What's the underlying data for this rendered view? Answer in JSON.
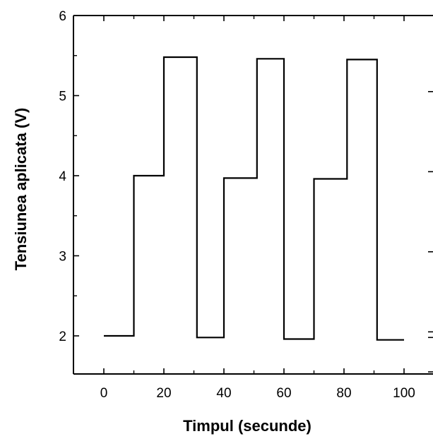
{
  "chart_data": {
    "type": "line",
    "title": "",
    "xlabel": "Timpul (secunde)",
    "ylabel": "Tensiunea aplicata (V)",
    "xlim": [
      -10,
      110
    ],
    "ylim": [
      1.5,
      6
    ],
    "x_ticks": [
      0,
      20,
      40,
      60,
      80,
      100
    ],
    "x_tick_labels": [
      "0",
      "20",
      "40",
      "60",
      "80",
      "100"
    ],
    "y_ticks": [
      2,
      3,
      4,
      5,
      6
    ],
    "y_tick_labels": [
      "2",
      "3",
      "4",
      "5",
      "6"
    ],
    "grid": false,
    "legend": "none",
    "line_color": "#000000",
    "series": [
      {
        "x": [
          0,
          10,
          10,
          20,
          20,
          31,
          31,
          40,
          40,
          51,
          51,
          60,
          60,
          70,
          70,
          81,
          81,
          91,
          91,
          100
        ],
        "y": [
          2.0,
          2.0,
          4.0,
          4.0,
          5.48,
          5.48,
          1.98,
          1.98,
          3.97,
          3.97,
          5.46,
          5.46,
          1.96,
          1.96,
          3.96,
          3.96,
          5.45,
          5.45,
          1.95,
          1.95
        ]
      }
    ]
  }
}
